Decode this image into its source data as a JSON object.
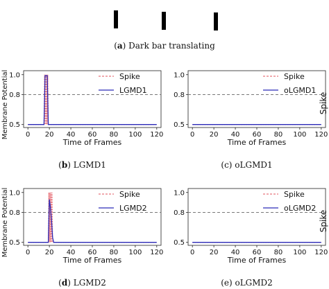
{
  "stimulus": {
    "caption_letter": "a",
    "caption_text": "Dark bar translating"
  },
  "shared": {
    "ylabel": "Membrane Potential",
    "side_label": "Spike"
  },
  "chart_data": [
    {
      "id": "b",
      "type": "line",
      "caption_letter": "b",
      "caption_text": "LGMD1",
      "xlabel": "Time of Frames",
      "ylabel": "Membrane Potential",
      "xlim": [
        -4,
        124
      ],
      "ylim": [
        0.47,
        1.04
      ],
      "xticks": [
        0,
        20,
        40,
        60,
        80,
        100,
        120
      ],
      "yticks": [
        0.5,
        0.8,
        1.0
      ],
      "ytick_labels": [
        "0.5",
        "0.8",
        "1.0"
      ],
      "threshold": 0.8,
      "legend_position": "top-right",
      "series": [
        {
          "name": "Spike",
          "style": "dashed",
          "color": "#e8747c",
          "x": [
            0,
            15,
            15.5,
            16,
            16.5,
            17,
            17.5,
            18,
            18.5,
            19,
            120
          ],
          "y": [
            0.5,
            0.5,
            1.0,
            0.5,
            1.0,
            0.5,
            1.0,
            0.5,
            1.0,
            0.5,
            0.5
          ]
        },
        {
          "name": "LGMD1",
          "style": "solid",
          "color": "#2b2bb8",
          "x": [
            0,
            15,
            16,
            17,
            18,
            19,
            20,
            120
          ],
          "y": [
            0.5,
            0.5,
            0.99,
            0.99,
            0.99,
            0.5,
            0.5,
            0.5
          ]
        }
      ]
    },
    {
      "id": "c",
      "type": "line",
      "caption_letter": "c",
      "caption_text": "oLGMD1",
      "xlabel": "Time of Frames",
      "ylabel": "",
      "xlim": [
        -4,
        124
      ],
      "ylim": [
        0.47,
        1.04
      ],
      "xticks": [
        0,
        20,
        40,
        60,
        80,
        100,
        120
      ],
      "yticks": [
        0.5,
        0.8,
        1.0
      ],
      "ytick_labels": [
        "0.5",
        "0.8",
        "1.0"
      ],
      "threshold": 0.8,
      "legend_position": "top-right",
      "series": [
        {
          "name": "Spike",
          "style": "dashed",
          "color": "#e8747c",
          "x": [
            0,
            120
          ],
          "y": [
            0.5,
            0.5
          ]
        },
        {
          "name": "oLGMD1",
          "style": "solid",
          "color": "#2b2bb8",
          "x": [
            0,
            120
          ],
          "y": [
            0.5,
            0.5
          ]
        }
      ]
    },
    {
      "id": "d",
      "type": "line",
      "caption_letter": "d",
      "caption_text": "LGMD2",
      "xlabel": "Time of Frames",
      "ylabel": "Membrane Potential",
      "xlim": [
        -4,
        124
      ],
      "ylim": [
        0.47,
        1.04
      ],
      "xticks": [
        0,
        20,
        40,
        60,
        80,
        100,
        120
      ],
      "yticks": [
        0.5,
        0.8,
        1.0
      ],
      "ytick_labels": [
        "0.5",
        "0.8",
        "1.0"
      ],
      "threshold": 0.8,
      "legend_position": "top-right",
      "series": [
        {
          "name": "Spike",
          "style": "dashed",
          "color": "#e8747c",
          "x": [
            0,
            19,
            19.5,
            20,
            20.5,
            21,
            21.5,
            22,
            22.5,
            23,
            120
          ],
          "y": [
            0.5,
            0.5,
            1.0,
            0.5,
            1.0,
            0.5,
            1.0,
            0.5,
            1.0,
            0.5,
            0.5
          ]
        },
        {
          "name": "LGMD2",
          "style": "solid",
          "color": "#2b2bb8",
          "x": [
            0,
            19,
            20,
            21,
            22,
            23,
            24,
            120
          ],
          "y": [
            0.5,
            0.5,
            0.93,
            0.85,
            0.72,
            0.55,
            0.5,
            0.5
          ]
        }
      ]
    },
    {
      "id": "e",
      "type": "line",
      "caption_letter": "e",
      "caption_text": "oLGMD2",
      "xlabel": "Time of Frames",
      "ylabel": "",
      "xlim": [
        -4,
        124
      ],
      "ylim": [
        0.47,
        1.04
      ],
      "xticks": [
        0,
        20,
        40,
        60,
        80,
        100,
        120
      ],
      "yticks": [
        0.5,
        0.8,
        1.0
      ],
      "ytick_labels": [
        "0.5",
        "0.8",
        "1.0"
      ],
      "threshold": 0.8,
      "legend_position": "top-right",
      "series": [
        {
          "name": "Spike",
          "style": "dashed",
          "color": "#e8747c",
          "x": [
            0,
            120
          ],
          "y": [
            0.5,
            0.5
          ]
        },
        {
          "name": "oLGMD2",
          "style": "solid",
          "color": "#2b2bb8",
          "x": [
            0,
            120
          ],
          "y": [
            0.5,
            0.5
          ]
        }
      ]
    }
  ]
}
